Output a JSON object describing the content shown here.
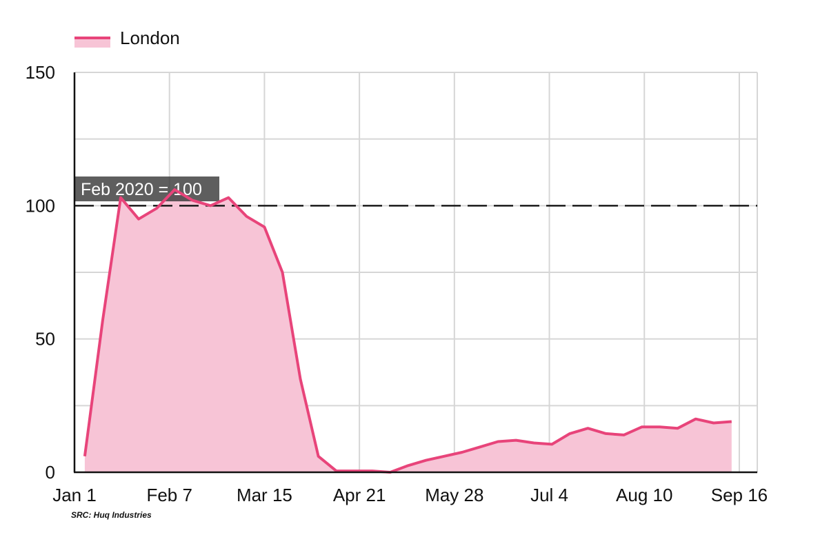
{
  "chart_data": {
    "type": "area",
    "title": "",
    "xlabel": "",
    "ylabel": "",
    "ylim": [
      0,
      150
    ],
    "yticks": [
      0,
      50,
      100,
      150
    ],
    "xlim": [
      "2020-01-01",
      "2020-09-23"
    ],
    "xtick_labels": [
      {
        "date": "2020-01-01",
        "label": "Jan 1"
      },
      {
        "date": "2020-02-07",
        "label": "Feb 7"
      },
      {
        "date": "2020-03-15",
        "label": "Mar 15"
      },
      {
        "date": "2020-04-21",
        "label": "Apr 21"
      },
      {
        "date": "2020-05-28",
        "label": "May 28"
      },
      {
        "date": "2020-07-04",
        "label": "Jul 4"
      },
      {
        "date": "2020-08-10",
        "label": "Aug 10"
      },
      {
        "date": "2020-09-16",
        "label": "Sep 16"
      }
    ],
    "grid": true,
    "legend": {
      "position": "top-left"
    },
    "series": [
      {
        "name": "London",
        "color": "#e8447a",
        "fill": "#f7c4d6",
        "points": [
          {
            "x": "2020-01-05",
            "y": 6
          },
          {
            "x": "2020-01-12",
            "y": 57
          },
          {
            "x": "2020-01-19",
            "y": 103
          },
          {
            "x": "2020-01-26",
            "y": 95
          },
          {
            "x": "2020-02-02",
            "y": 99
          },
          {
            "x": "2020-02-09",
            "y": 106
          },
          {
            "x": "2020-02-16",
            "y": 102
          },
          {
            "x": "2020-02-23",
            "y": 100
          },
          {
            "x": "2020-03-01",
            "y": 103
          },
          {
            "x": "2020-03-08",
            "y": 96
          },
          {
            "x": "2020-03-15",
            "y": 92
          },
          {
            "x": "2020-03-22",
            "y": 75
          },
          {
            "x": "2020-03-29",
            "y": 35
          },
          {
            "x": "2020-04-05",
            "y": 6
          },
          {
            "x": "2020-04-12",
            "y": 0.5
          },
          {
            "x": "2020-04-19",
            "y": 0.5
          },
          {
            "x": "2020-04-26",
            "y": 0.5
          },
          {
            "x": "2020-05-03",
            "y": 0
          },
          {
            "x": "2020-05-10",
            "y": 2.5
          },
          {
            "x": "2020-05-17",
            "y": 4.5
          },
          {
            "x": "2020-05-24",
            "y": 6
          },
          {
            "x": "2020-05-31",
            "y": 7.5
          },
          {
            "x": "2020-06-07",
            "y": 9.5
          },
          {
            "x": "2020-06-14",
            "y": 11.5
          },
          {
            "x": "2020-06-21",
            "y": 12
          },
          {
            "x": "2020-06-28",
            "y": 11
          },
          {
            "x": "2020-07-05",
            "y": 10.5
          },
          {
            "x": "2020-07-12",
            "y": 14.5
          },
          {
            "x": "2020-07-19",
            "y": 16.5
          },
          {
            "x": "2020-07-26",
            "y": 14.5
          },
          {
            "x": "2020-08-02",
            "y": 14
          },
          {
            "x": "2020-08-09",
            "y": 17
          },
          {
            "x": "2020-08-16",
            "y": 17
          },
          {
            "x": "2020-08-23",
            "y": 16.5
          },
          {
            "x": "2020-08-30",
            "y": 20
          },
          {
            "x": "2020-09-06",
            "y": 18.5
          },
          {
            "x": "2020-09-13",
            "y": 19
          }
        ]
      }
    ],
    "reference_line": {
      "y": 100,
      "style": "dashed",
      "label": "Feb 2020 = 100"
    }
  },
  "source": "SRC: Huq Industries"
}
